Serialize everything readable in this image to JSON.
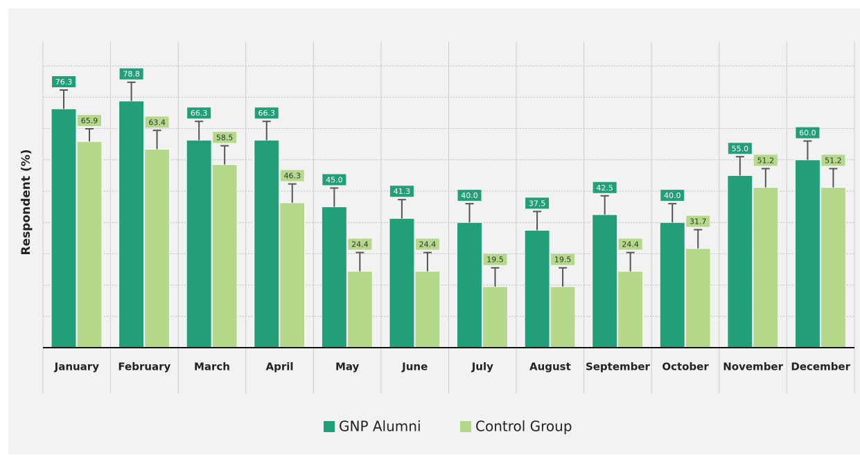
{
  "chart_data": {
    "type": "bar",
    "categories": [
      "January",
      "February",
      "March",
      "April",
      "May",
      "June",
      "July",
      "August",
      "September",
      "October",
      "November",
      "December"
    ],
    "series": [
      {
        "name": "GNP Alumni",
        "color": "#229e78",
        "values": [
          76.3,
          78.8,
          66.3,
          66.3,
          45.0,
          41.3,
          40.0,
          37.5,
          42.5,
          40.0,
          55.0,
          60.0
        ],
        "value_labels": [
          "76.3",
          "78.8",
          "66.3",
          "66.3",
          "45.0",
          "41.3",
          "40.0",
          "37.5",
          "42.5",
          "40.0",
          "55.0",
          "60.0"
        ],
        "errors": [
          6,
          6,
          6,
          6,
          6,
          6,
          6,
          6,
          6,
          6,
          6,
          6
        ]
      },
      {
        "name": "Control Group",
        "color": "#b5d98a",
        "values": [
          65.9,
          63.4,
          58.5,
          46.3,
          24.4,
          24.4,
          19.5,
          19.5,
          24.4,
          31.7,
          51.2,
          51.2
        ],
        "value_labels": [
          "65.9",
          "63.4",
          "58.5",
          "46.3",
          "24.4",
          "24.4",
          "19.5",
          "19.5",
          "24.4",
          "31.7",
          "51.2",
          "51.2"
        ],
        "errors": [
          4,
          6,
          6,
          6,
          6,
          6,
          6,
          6,
          6,
          6,
          6,
          6
        ]
      }
    ],
    "ylabel": "Respondent (%)",
    "ylim": [
      0,
      100
    ],
    "yticks": [
      10,
      20,
      30,
      40,
      50,
      60,
      70,
      80,
      90
    ],
    "grid": true,
    "legend": "bottom"
  }
}
